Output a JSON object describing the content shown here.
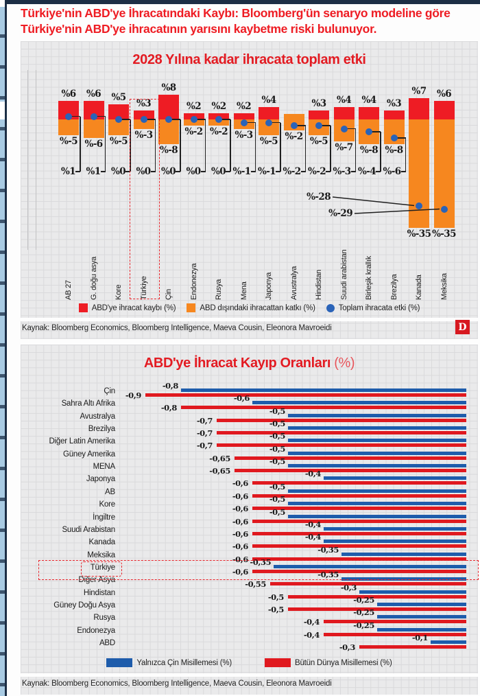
{
  "page": {
    "headline": "Türkiye'nin ABD'ye İhracatındaki Kaybı: Bloomberg'ün senaryo modeline göre Türkiye'nin ABD'ye ihracatının yarısını kaybetme riski bulunuyor.",
    "badge": "D",
    "source_line_1": "Kaynak: Bloomberg Economics, Bloomberg Intelligence, Maeva Cousin, Eleonora Mavroeidi",
    "source_line_2": "Kaynak: Bloomberg Economics, Bloomberg Intelligence, Maeva Cousin, Eleonora Mavroeidi"
  },
  "chart_data": [
    {
      "type": "bar",
      "title": "2028 Yılına kadar ihracata toplam etki",
      "value_prefix": "%",
      "grid": true,
      "legend_position": "bottom",
      "highlight_category": "Türkiye",
      "categories": [
        "AB 27",
        "G. doğu asya",
        "Kore",
        "Türkiye",
        "Çin",
        "Endonezya",
        "Rusya",
        "Mena",
        "Japonya",
        "Avustralya",
        "Hindistan",
        "Suudi arabistan",
        "Birleşik krallık",
        "Brezilya",
        "Kanada",
        "Meksika"
      ],
      "series": [
        {
          "name": "ABD'ye ihracat kaybı (%)",
          "type": "bar",
          "color": "#ee1c24",
          "values": [
            6,
            6,
            5,
            3,
            8,
            2,
            2,
            2,
            4,
            null,
            3,
            4,
            4,
            3,
            7,
            6
          ]
        },
        {
          "name": "ABD dışındaki ihracattan katkı (%)",
          "type": "bar",
          "color": "#f6871f",
          "values": [
            -5,
            -6,
            -5,
            -3,
            -8,
            -2,
            -2,
            -3,
            -5,
            -2,
            -5,
            -7,
            -8,
            -8,
            -35,
            -35
          ]
        },
        {
          "name": "Toplam ihracata etki (%)",
          "type": "point",
          "color": "#2a63b8",
          "values": [
            1,
            1,
            0,
            0,
            0,
            0,
            0,
            -1,
            -1,
            -2,
            -2,
            -3,
            -4,
            -6,
            -28,
            -29
          ]
        }
      ]
    },
    {
      "type": "bar",
      "orientation": "horizontal",
      "title": "ABD'ye İhracat Kayıp Oranları",
      "title_suffix": "(%)",
      "xlim": [
        -1.0,
        0
      ],
      "grid": true,
      "legend_position": "bottom",
      "highlight_category": "Türkiye",
      "categories": [
        "Çin",
        "Sahra Altı Afrika",
        "Avustralya",
        "Brezilya",
        "Diğer Latin Amerika",
        "Güney Amerika",
        "MENA",
        "Japonya",
        "AB",
        "Kore",
        "İngiltre",
        "Suudi Arabistan",
        "Kanada",
        "Meksika",
        "Türkiye",
        "Diğer Asya",
        "Hindistan",
        "Güney Doğu Asya",
        "Rusya",
        "Endonezya",
        "ABD"
      ],
      "series": [
        {
          "name": "Yalnızca Çin Misillemesi (%)",
          "color": "#1e5cab",
          "values": [
            -0.8,
            -0.6,
            -0.5,
            -0.5,
            -0.5,
            -0.5,
            -0.5,
            -0.4,
            -0.5,
            -0.5,
            -0.5,
            -0.4,
            -0.4,
            -0.35,
            -0.35,
            -0.35,
            -0.3,
            -0.25,
            -0.25,
            -0.25,
            -0.1
          ]
        },
        {
          "name": "Bütün Dünya Misillemesi (%)",
          "color": "#e0191f",
          "values": [
            -0.9,
            -0.8,
            -0.7,
            -0.7,
            -0.7,
            -0.65,
            -0.65,
            -0.6,
            -0.6,
            -0.6,
            -0.6,
            -0.6,
            -0.6,
            -0.6,
            -0.6,
            -0.55,
            -0.5,
            -0.5,
            -0.4,
            -0.4,
            -0.3
          ]
        }
      ]
    }
  ]
}
